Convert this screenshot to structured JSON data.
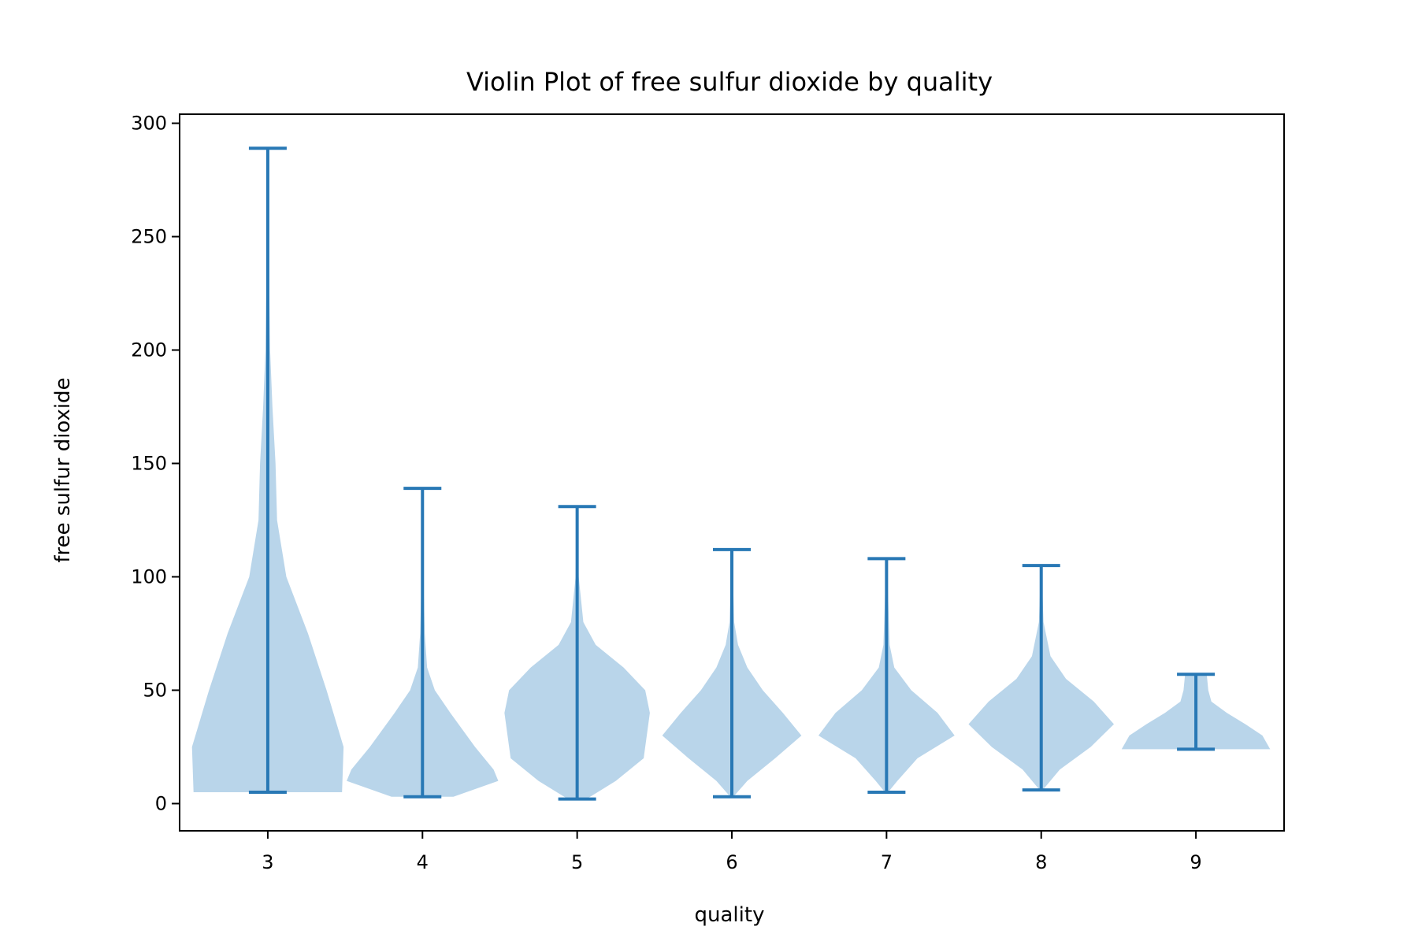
{
  "chart_data": {
    "type": "violin",
    "title": "Violin Plot of free sulfur dioxide by quality",
    "xlabel": "quality",
    "ylabel": "free sulfur dioxide",
    "categories": [
      "3",
      "4",
      "5",
      "6",
      "7",
      "8",
      "9"
    ],
    "x_ticks": [
      "3",
      "4",
      "5",
      "6",
      "7",
      "8",
      "9"
    ],
    "y_ticks": [
      "0",
      "50",
      "100",
      "150",
      "200",
      "250",
      "300"
    ],
    "ylim": [
      -12,
      304
    ],
    "grid": false,
    "colors": {
      "violin_fill": "#b9d5ea",
      "line": "#2878b5",
      "axis": "#000000"
    },
    "series": [
      {
        "category": "3",
        "min": 5,
        "max": 289,
        "shape": [
          [
            5,
            0.48
          ],
          [
            25,
            0.49
          ],
          [
            50,
            0.38
          ],
          [
            75,
            0.26
          ],
          [
            100,
            0.12
          ],
          [
            125,
            0.06
          ],
          [
            150,
            0.05
          ],
          [
            175,
            0.03
          ],
          [
            200,
            0.015
          ],
          [
            250,
            0.005
          ],
          [
            289,
            0.002
          ]
        ]
      },
      {
        "category": "4",
        "min": 3,
        "max": 139,
        "shape": [
          [
            3,
            0.2
          ],
          [
            10,
            0.49
          ],
          [
            15,
            0.46
          ],
          [
            25,
            0.34
          ],
          [
            40,
            0.18
          ],
          [
            50,
            0.08
          ],
          [
            60,
            0.03
          ],
          [
            75,
            0.015
          ],
          [
            100,
            0.006
          ],
          [
            139,
            0.002
          ]
        ]
      },
      {
        "category": "5",
        "min": 2,
        "max": 131,
        "shape": [
          [
            2,
            0.06
          ],
          [
            10,
            0.25
          ],
          [
            20,
            0.43
          ],
          [
            40,
            0.47
          ],
          [
            50,
            0.44
          ],
          [
            60,
            0.3
          ],
          [
            70,
            0.12
          ],
          [
            80,
            0.04
          ],
          [
            100,
            0.01
          ],
          [
            131,
            0.002
          ]
        ]
      },
      {
        "category": "6",
        "min": 3,
        "max": 112,
        "shape": [
          [
            3,
            0.01
          ],
          [
            10,
            0.1
          ],
          [
            20,
            0.28
          ],
          [
            30,
            0.45
          ],
          [
            40,
            0.33
          ],
          [
            50,
            0.2
          ],
          [
            60,
            0.1
          ],
          [
            70,
            0.04
          ],
          [
            80,
            0.015
          ],
          [
            112,
            0.002
          ]
        ]
      },
      {
        "category": "7",
        "min": 5,
        "max": 108,
        "shape": [
          [
            5,
            0.01
          ],
          [
            10,
            0.07
          ],
          [
            20,
            0.2
          ],
          [
            30,
            0.44
          ],
          [
            40,
            0.33
          ],
          [
            50,
            0.16
          ],
          [
            60,
            0.05
          ],
          [
            70,
            0.02
          ],
          [
            108,
            0.002
          ]
        ]
      },
      {
        "category": "8",
        "min": 6,
        "max": 105,
        "shape": [
          [
            6,
            0.01
          ],
          [
            15,
            0.12
          ],
          [
            25,
            0.32
          ],
          [
            35,
            0.47
          ],
          [
            45,
            0.34
          ],
          [
            55,
            0.16
          ],
          [
            65,
            0.06
          ],
          [
            80,
            0.015
          ],
          [
            105,
            0.002
          ]
        ]
      },
      {
        "category": "9",
        "min": 24,
        "max": 57,
        "shape": [
          [
            24,
            0.48
          ],
          [
            30,
            0.43
          ],
          [
            35,
            0.32
          ],
          [
            40,
            0.2
          ],
          [
            45,
            0.1
          ],
          [
            50,
            0.08
          ],
          [
            57,
            0.07
          ]
        ]
      }
    ]
  }
}
